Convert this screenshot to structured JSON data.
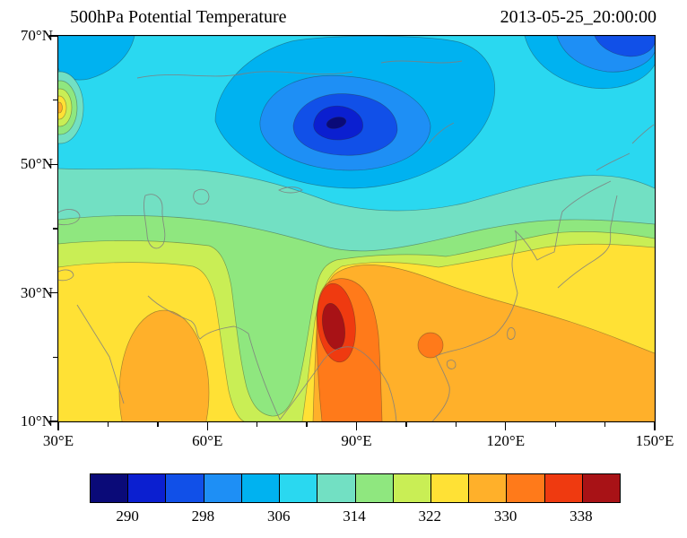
{
  "header": {
    "title": "500hPa Potential Temperature",
    "timestamp": "2013-05-25_20:00:00"
  },
  "axes": {
    "x_ticks": [
      {
        "value": 30,
        "label": "30°E"
      },
      {
        "value": 60,
        "label": "60°E"
      },
      {
        "value": 90,
        "label": "90°E"
      },
      {
        "value": 120,
        "label": "120°E"
      },
      {
        "value": 150,
        "label": "150°E"
      }
    ],
    "y_ticks": [
      {
        "value": 70,
        "label": "70°N"
      },
      {
        "value": 50,
        "label": "50°N"
      },
      {
        "value": 30,
        "label": "30°N"
      },
      {
        "value": 10,
        "label": "10°N"
      }
    ],
    "x_minor_step": 10,
    "y_minor_step": 10
  },
  "chart_data": {
    "type": "contour",
    "title": "500hPa Potential Temperature",
    "time_label": "2013-05-25_20:00:00",
    "variable": "Potential Temperature",
    "pressure_level": "500hPa",
    "x_axis": {
      "label": "longitude",
      "min": 30,
      "max": 150,
      "unit": "°E",
      "major_tick_step": 30,
      "minor_tick_step": 10
    },
    "y_axis": {
      "label": "latitude",
      "min": 10,
      "max": 70,
      "unit": "°N",
      "major_tick_step": 20,
      "minor_tick_step": 10
    },
    "contour_interval": 4,
    "levels": [
      286,
      290,
      294,
      298,
      302,
      306,
      310,
      314,
      318,
      322,
      326,
      330,
      334,
      338,
      342
    ],
    "colorbar_labels": [
      "290",
      "298",
      "306",
      "314",
      "322",
      "330",
      "338"
    ],
    "palette": {
      "286": "#0a0a78",
      "290": "#0b1fd0",
      "294": "#1150e8",
      "298": "#1e8ff5",
      "302": "#00b2f0",
      "306": "#2ad8f0",
      "310": "#72e0c3",
      "314": "#8fe77f",
      "318": "#c9ee55",
      "322": "#ffe135",
      "326": "#ffb02a",
      "330": "#ff7a1a",
      "334": "#ef3a10",
      "338": "#a81216"
    },
    "features": [
      {
        "name": "cold core",
        "lon": 87,
        "lat": 57,
        "value": "< 290"
      },
      {
        "name": "cold core northeast",
        "lon": 141,
        "lat": 69,
        "value": "< 294"
      },
      {
        "name": "warm core over plateau",
        "lon": 84.5,
        "lat": 25.5,
        "value": "> 338"
      },
      {
        "name": "secondary warm spot",
        "lon": 105,
        "lat": 21.5,
        "value": "> 330"
      },
      {
        "name": "small warm spot at west edge",
        "lon": 30.5,
        "lat": 59,
        "value": "> 326"
      },
      {
        "name": "cool green tongue",
        "lon": 71,
        "lat": 25,
        "value": "314-318"
      },
      {
        "name": "warm region southwest",
        "lon": 51,
        "lat": 18,
        "value": "> 326"
      }
    ]
  },
  "map": {
    "coastlines_note": "simplified gray coastlines of Eurasia, South Asia and East Asia"
  }
}
